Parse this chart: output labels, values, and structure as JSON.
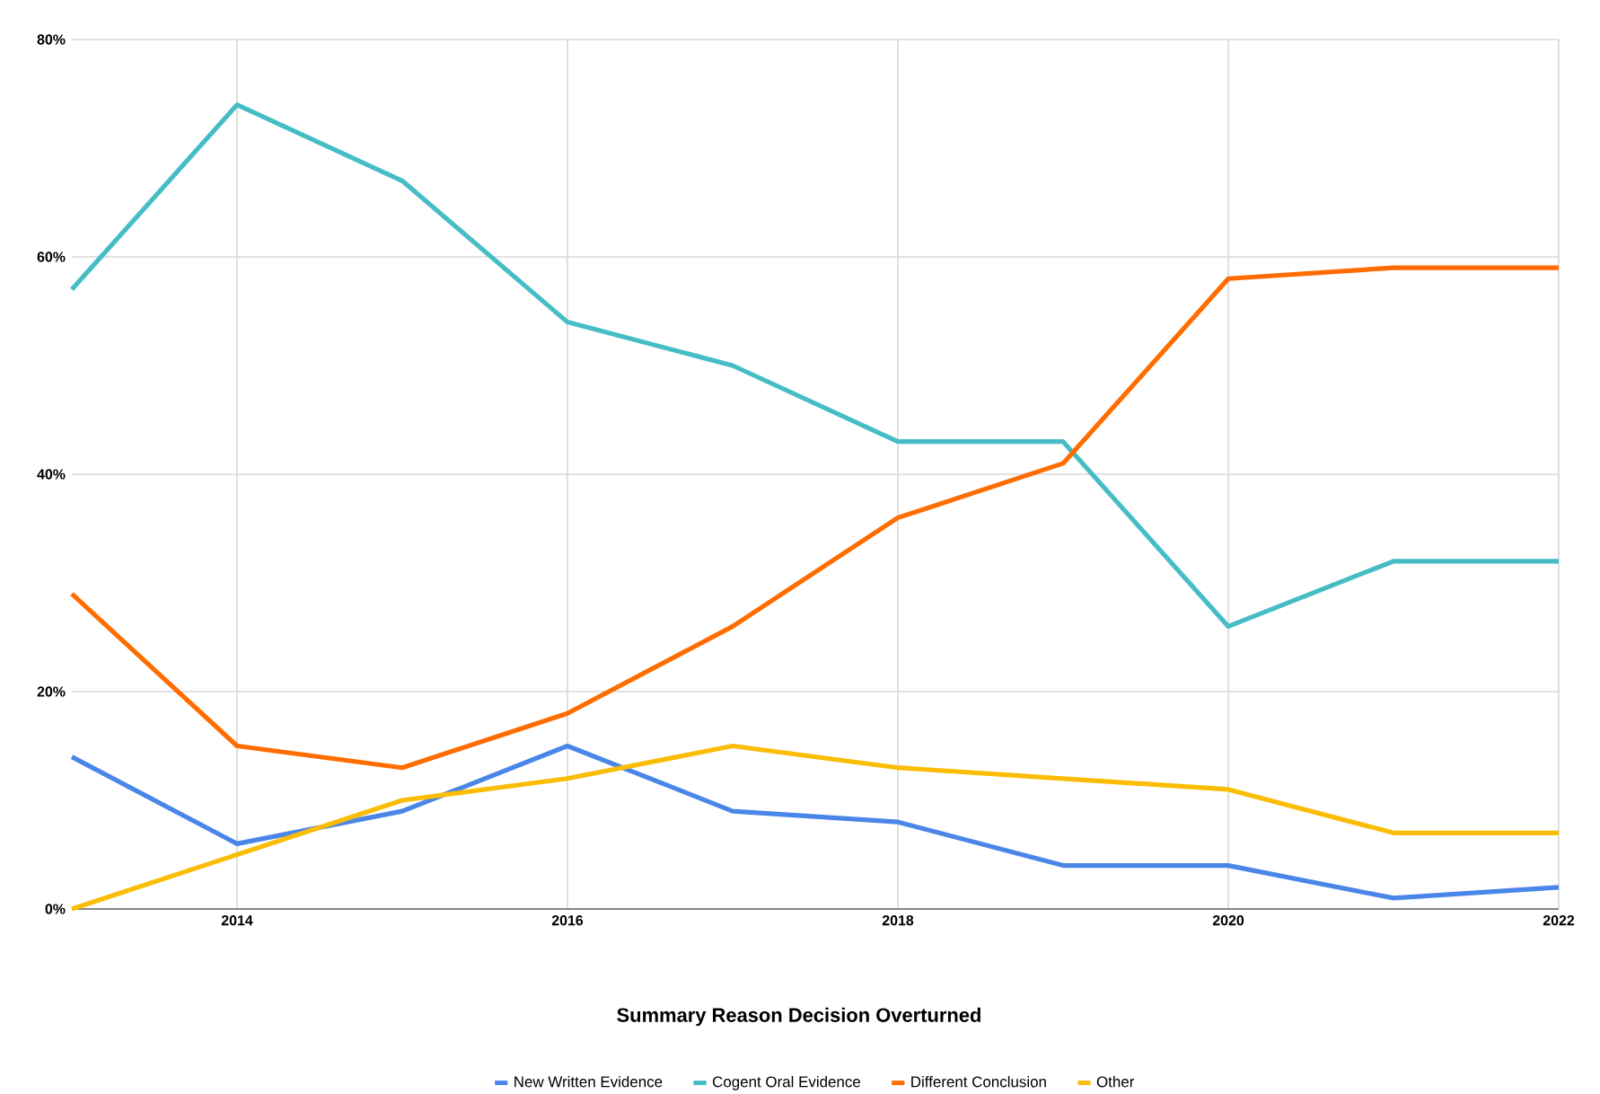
{
  "chart_data": {
    "type": "line",
    "title": "Summary Reason Decision Overturned",
    "x": [
      2013,
      2014,
      2015,
      2016,
      2017,
      2018,
      2019,
      2020,
      2021,
      2022
    ],
    "series": [
      {
        "name": "New Written Evidence",
        "color": "#4a86e8",
        "values": [
          14,
          6,
          9,
          15,
          9,
          8,
          4,
          4,
          1,
          2
        ]
      },
      {
        "name": "Cogent Oral Evidence",
        "color": "#46bdc6",
        "values": [
          57,
          74,
          67,
          54,
          50,
          43,
          43,
          26,
          32,
          32
        ]
      },
      {
        "name": "Different Conclusion",
        "color": "#ff6d01",
        "values": [
          29,
          15,
          13,
          18,
          26,
          36,
          41,
          58,
          59,
          59
        ]
      },
      {
        "name": "Other",
        "color": "#fbbc04",
        "values": [
          0,
          5,
          10,
          12,
          15,
          13,
          12,
          11,
          7,
          7
        ]
      }
    ],
    "xlim": [
      2013,
      2022
    ],
    "xticks": [
      2014,
      2016,
      2018,
      2020,
      2022
    ],
    "ylim": [
      0,
      80
    ],
    "yticks": [
      {
        "value": 0,
        "label": "0%"
      },
      {
        "value": 20,
        "label": "20%"
      },
      {
        "value": 40,
        "label": "40%"
      },
      {
        "value": 60,
        "label": "60%"
      },
      {
        "value": 80,
        "label": "80%"
      }
    ],
    "grid": true,
    "legend": "bottom"
  }
}
